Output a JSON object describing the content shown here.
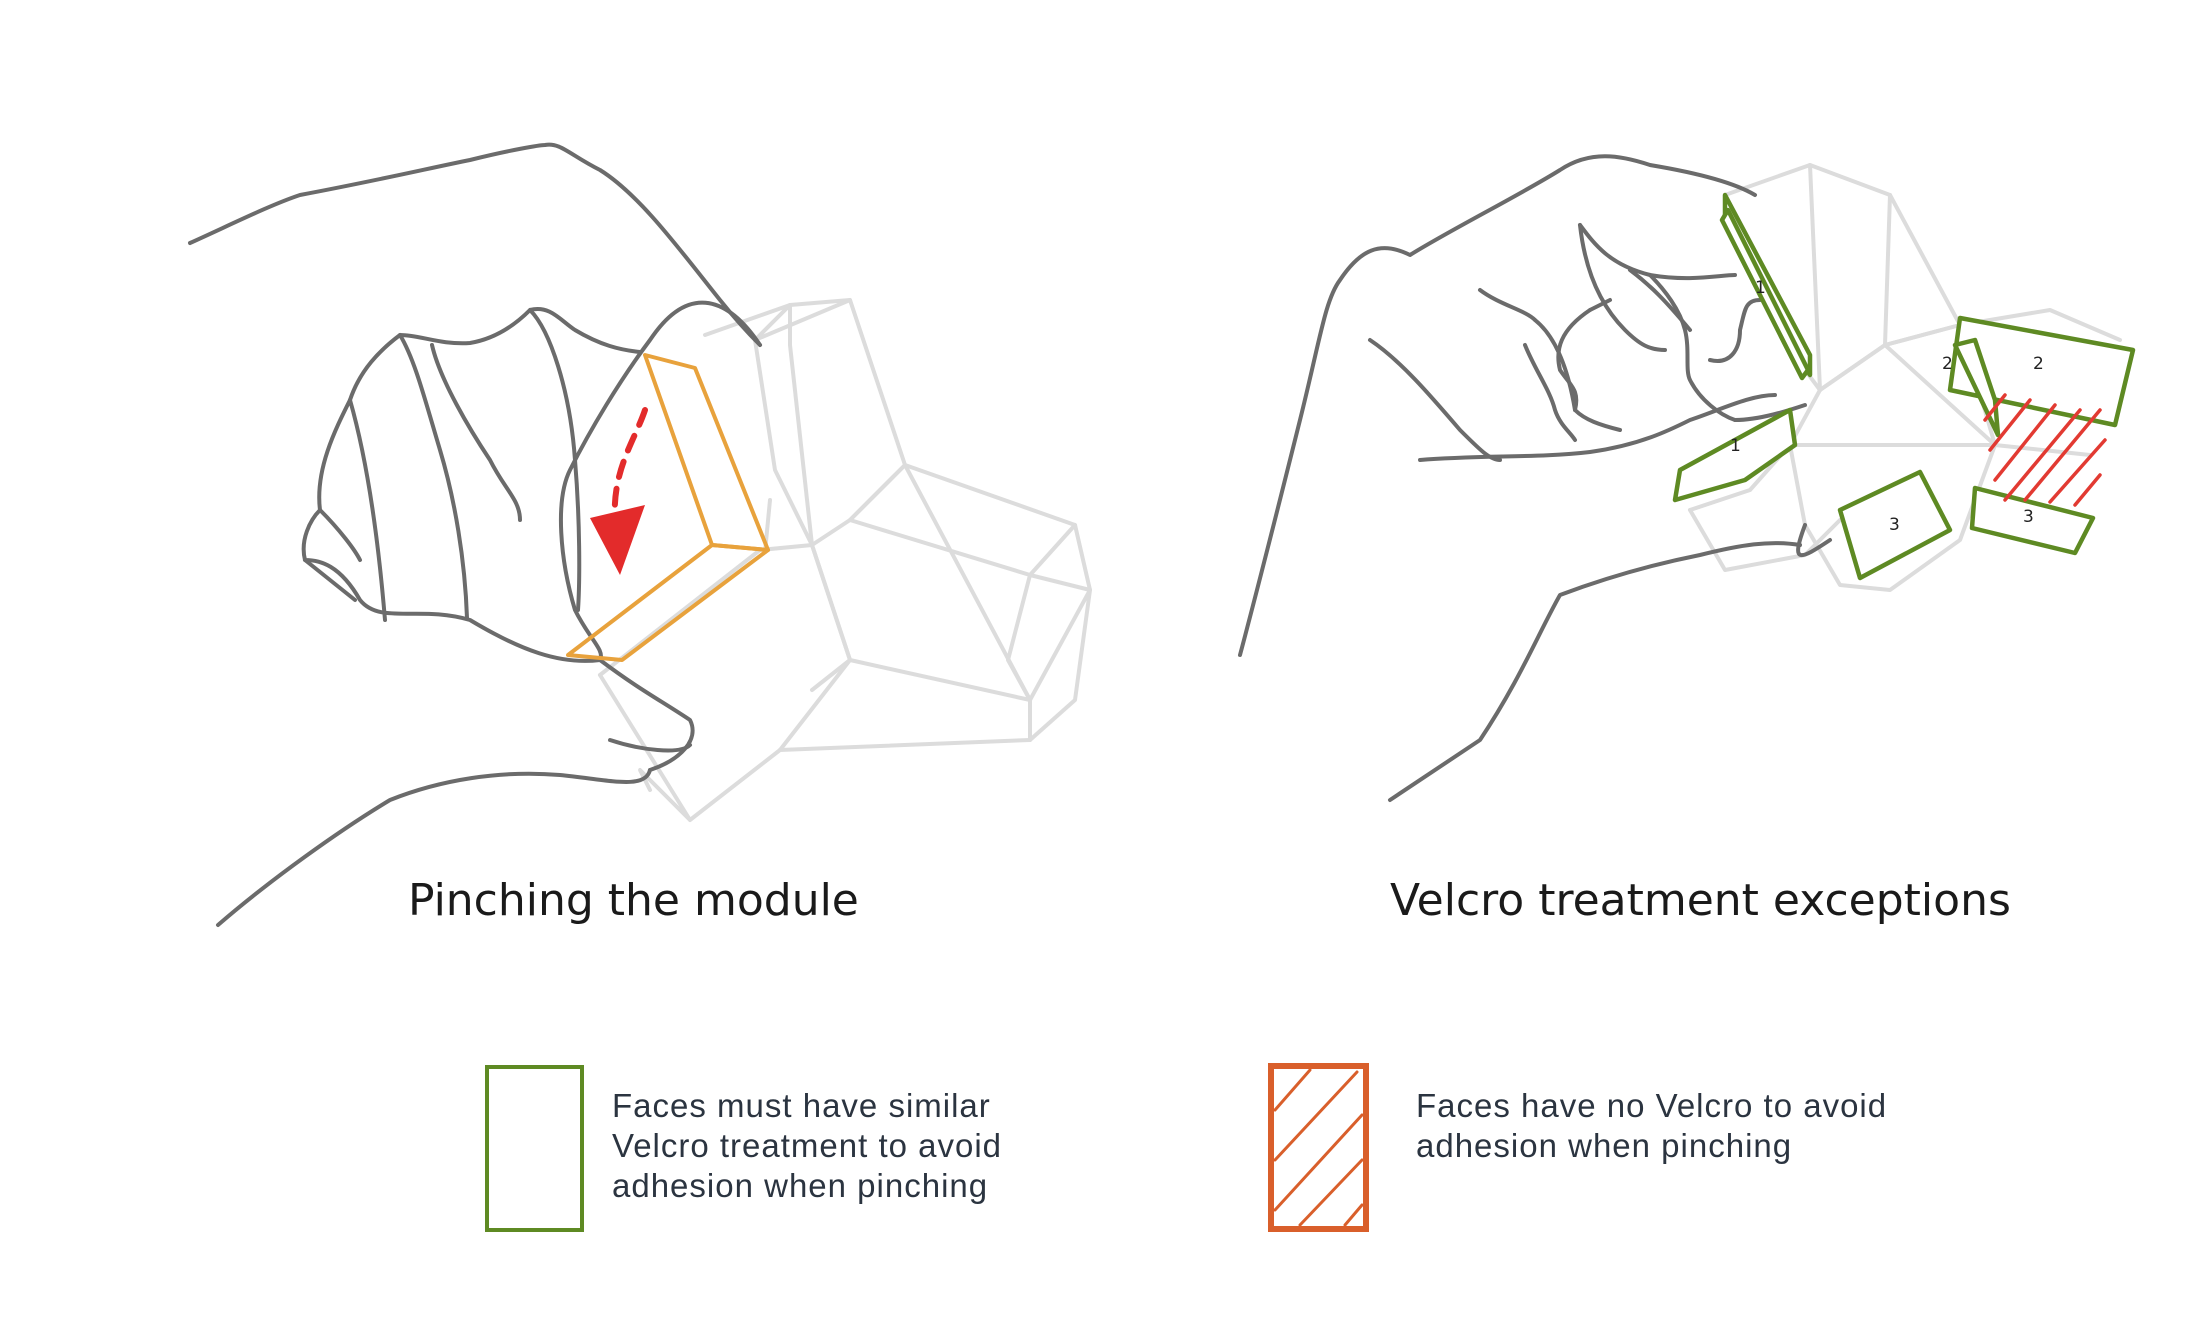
{
  "captions": {
    "left": "Pinching the module",
    "right": "Velcro treatment exceptions"
  },
  "face_numbers": [
    "1",
    "1",
    "2",
    "2",
    "3",
    "3"
  ],
  "legend": {
    "green": {
      "lines": [
        "Faces must have similar",
        "Velcro treatment to avoid",
        "adhesion when pinching"
      ],
      "color": "#5e8a23"
    },
    "orange": {
      "lines": [
        "Faces have no Velcro to avoid",
        "adhesion when pinching"
      ],
      "color": "#d95f2b"
    }
  },
  "colors": {
    "hand_outline": "#6b6b6b",
    "module_outline": "#dcdcdc",
    "pinched_faces": "#e8a23c",
    "arrow": "#e32b2b",
    "no_velcro_hatch": "#e23a32"
  }
}
